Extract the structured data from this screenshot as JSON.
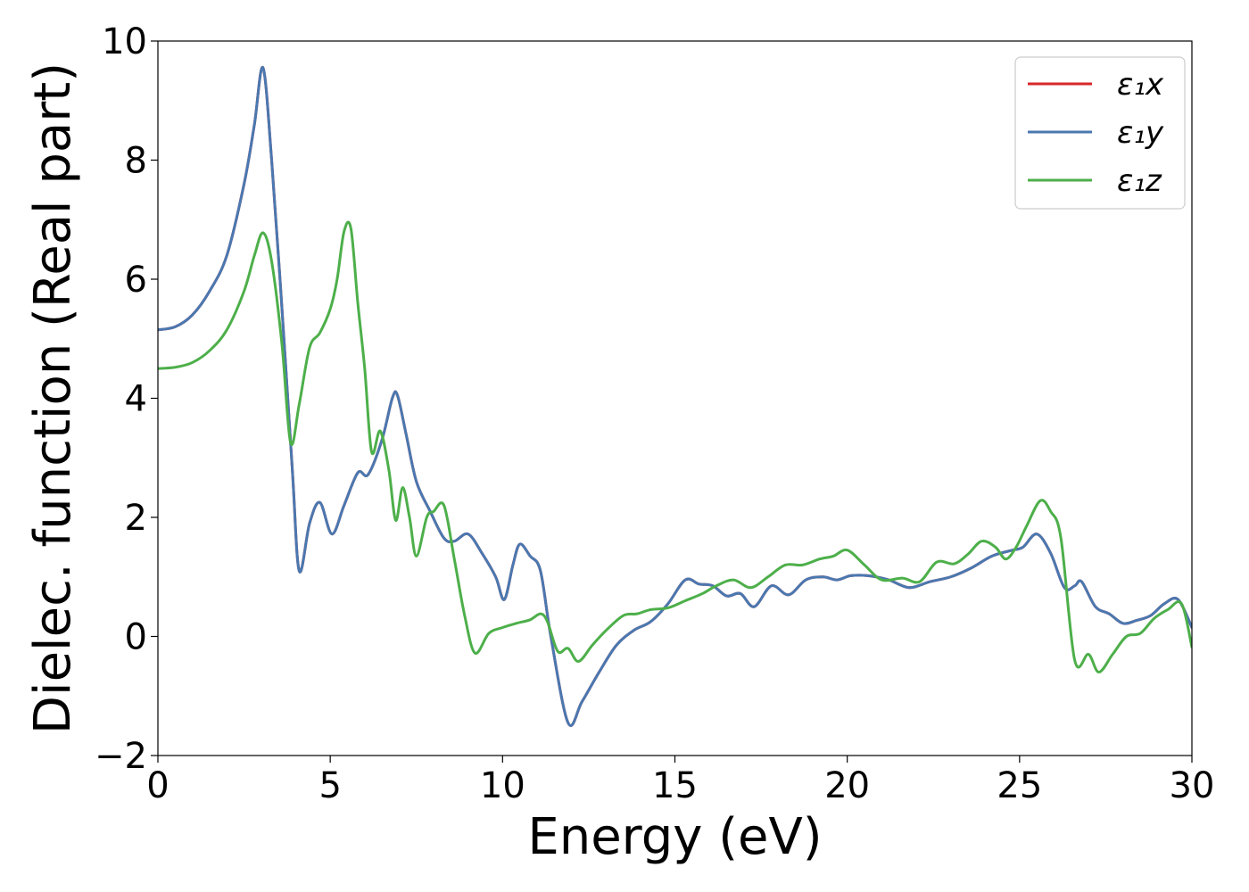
{
  "chart_data": {
    "type": "line",
    "xlabel": "Energy (eV)",
    "ylabel": "Dielec. function (Real part)",
    "xlim": [
      0,
      30
    ],
    "ylim": [
      -2,
      10
    ],
    "xticks": [
      0,
      5,
      10,
      15,
      20,
      25,
      30
    ],
    "yticks": [
      -2,
      0,
      2,
      4,
      6,
      8,
      10
    ],
    "xtick_labels": [
      "0",
      "5",
      "10",
      "15",
      "20",
      "25",
      "30"
    ],
    "ytick_labels": [
      "−2",
      "0",
      "2",
      "4",
      "6",
      "8",
      "10"
    ],
    "grid": false,
    "legend_position": "top-right",
    "series": [
      {
        "name": "ε₁x",
        "color": "#d62728",
        "x": [
          0,
          0.5,
          1,
          1.5,
          2,
          2.5,
          2.8,
          3.05,
          3.3,
          3.6,
          3.9,
          4.1,
          4.4,
          4.7,
          5.05,
          5.4,
          5.8,
          6.1,
          6.5,
          6.8,
          6.95,
          7.2,
          7.5,
          7.9,
          8.3,
          8.6,
          9.0,
          9.4,
          9.8,
          10.05,
          10.3,
          10.5,
          10.8,
          11.1,
          11.4,
          11.9,
          12.3,
          12.8,
          13.3,
          13.8,
          14.3,
          14.8,
          15.3,
          15.7,
          16.1,
          16.5,
          16.9,
          17.3,
          17.8,
          18.3,
          18.8,
          19.3,
          19.7,
          20.1,
          20.6,
          21.2,
          21.8,
          22.4,
          23.0,
          23.6,
          24.2,
          24.8,
          25.1,
          25.5,
          25.9,
          26.3,
          26.6,
          26.8,
          27.2,
          27.6,
          28.0,
          28.4,
          28.8,
          29.2,
          29.6,
          30.0
        ],
        "values": [
          5.15,
          5.2,
          5.4,
          5.8,
          6.4,
          7.6,
          8.6,
          9.55,
          8.0,
          5.5,
          2.8,
          1.1,
          1.9,
          2.25,
          1.72,
          2.2,
          2.75,
          2.72,
          3.3,
          4.0,
          4.05,
          3.4,
          2.6,
          2.1,
          1.65,
          1.6,
          1.72,
          1.4,
          1.0,
          0.62,
          1.2,
          1.55,
          1.35,
          1.1,
          0.0,
          -1.45,
          -1.1,
          -0.6,
          -0.15,
          0.1,
          0.25,
          0.55,
          0.95,
          0.88,
          0.85,
          0.68,
          0.72,
          0.5,
          0.85,
          0.7,
          0.95,
          1.0,
          0.95,
          1.02,
          1.02,
          0.95,
          0.82,
          0.92,
          1.0,
          1.15,
          1.35,
          1.45,
          1.5,
          1.72,
          1.4,
          0.82,
          0.85,
          0.92,
          0.5,
          0.38,
          0.22,
          0.27,
          0.35,
          0.55,
          0.62,
          0.15
        ]
      },
      {
        "name": "ε₁y",
        "color": "#4a78b0",
        "x": [
          0,
          0.5,
          1,
          1.5,
          2,
          2.5,
          2.8,
          3.05,
          3.3,
          3.6,
          3.9,
          4.1,
          4.4,
          4.7,
          5.05,
          5.4,
          5.8,
          6.1,
          6.5,
          6.8,
          6.95,
          7.2,
          7.5,
          7.9,
          8.3,
          8.6,
          9.0,
          9.4,
          9.8,
          10.05,
          10.3,
          10.5,
          10.8,
          11.1,
          11.4,
          11.9,
          12.3,
          12.8,
          13.3,
          13.8,
          14.3,
          14.8,
          15.3,
          15.7,
          16.1,
          16.5,
          16.9,
          17.3,
          17.8,
          18.3,
          18.8,
          19.3,
          19.7,
          20.1,
          20.6,
          21.2,
          21.8,
          22.4,
          23.0,
          23.6,
          24.2,
          24.8,
          25.1,
          25.5,
          25.9,
          26.3,
          26.6,
          26.8,
          27.2,
          27.6,
          28.0,
          28.4,
          28.8,
          29.2,
          29.6,
          30.0
        ],
        "values": [
          5.15,
          5.2,
          5.4,
          5.8,
          6.4,
          7.6,
          8.6,
          9.55,
          8.0,
          5.5,
          2.8,
          1.1,
          1.9,
          2.25,
          1.72,
          2.2,
          2.75,
          2.72,
          3.3,
          4.0,
          4.05,
          3.4,
          2.6,
          2.1,
          1.65,
          1.6,
          1.72,
          1.4,
          1.0,
          0.62,
          1.2,
          1.55,
          1.35,
          1.1,
          0.0,
          -1.45,
          -1.1,
          -0.6,
          -0.15,
          0.1,
          0.25,
          0.55,
          0.95,
          0.88,
          0.85,
          0.68,
          0.72,
          0.5,
          0.85,
          0.7,
          0.95,
          1.0,
          0.95,
          1.02,
          1.02,
          0.95,
          0.82,
          0.92,
          1.0,
          1.15,
          1.35,
          1.45,
          1.5,
          1.72,
          1.4,
          0.82,
          0.85,
          0.92,
          0.5,
          0.38,
          0.22,
          0.27,
          0.35,
          0.55,
          0.62,
          0.15
        ]
      },
      {
        "name": "ε₁z",
        "color": "#4daf4a",
        "x": [
          0,
          0.5,
          1,
          1.5,
          2,
          2.5,
          2.8,
          3.05,
          3.3,
          3.6,
          3.85,
          4.1,
          4.4,
          4.7,
          5.0,
          5.2,
          5.4,
          5.6,
          5.8,
          6.0,
          6.2,
          6.45,
          6.7,
          6.9,
          7.1,
          7.3,
          7.5,
          7.8,
          8.0,
          8.3,
          8.6,
          8.9,
          9.2,
          9.6,
          10.0,
          10.4,
          10.8,
          11.1,
          11.3,
          11.6,
          11.9,
          12.2,
          12.6,
          13.0,
          13.5,
          13.9,
          14.3,
          14.8,
          15.3,
          15.8,
          16.2,
          16.7,
          17.2,
          17.7,
          18.2,
          18.7,
          19.2,
          19.6,
          20.0,
          20.5,
          21.0,
          21.6,
          22.1,
          22.6,
          23.1,
          23.5,
          23.9,
          24.3,
          24.6,
          24.9,
          25.2,
          25.6,
          25.9,
          26.2,
          26.6,
          27.0,
          27.3,
          27.7,
          28.1,
          28.5,
          28.9,
          29.3,
          29.7,
          30.0
        ],
        "values": [
          4.5,
          4.52,
          4.6,
          4.8,
          5.15,
          5.8,
          6.4,
          6.78,
          6.3,
          4.9,
          3.25,
          3.9,
          4.85,
          5.1,
          5.5,
          6.0,
          6.8,
          6.85,
          5.6,
          4.5,
          3.1,
          3.45,
          2.8,
          1.95,
          2.5,
          2.0,
          1.35,
          2.0,
          2.1,
          2.2,
          1.3,
          0.35,
          -0.28,
          0.05,
          0.15,
          0.22,
          0.28,
          0.38,
          0.25,
          -0.25,
          -0.2,
          -0.42,
          -0.15,
          0.1,
          0.35,
          0.38,
          0.45,
          0.48,
          0.6,
          0.72,
          0.85,
          0.95,
          0.82,
          1.0,
          1.2,
          1.2,
          1.3,
          1.35,
          1.45,
          1.2,
          0.95,
          0.98,
          0.92,
          1.25,
          1.22,
          1.38,
          1.6,
          1.5,
          1.3,
          1.5,
          1.85,
          2.28,
          2.1,
          1.65,
          -0.4,
          -0.3,
          -0.6,
          -0.3,
          0.0,
          0.05,
          0.3,
          0.45,
          0.55,
          -0.18
        ]
      }
    ]
  }
}
